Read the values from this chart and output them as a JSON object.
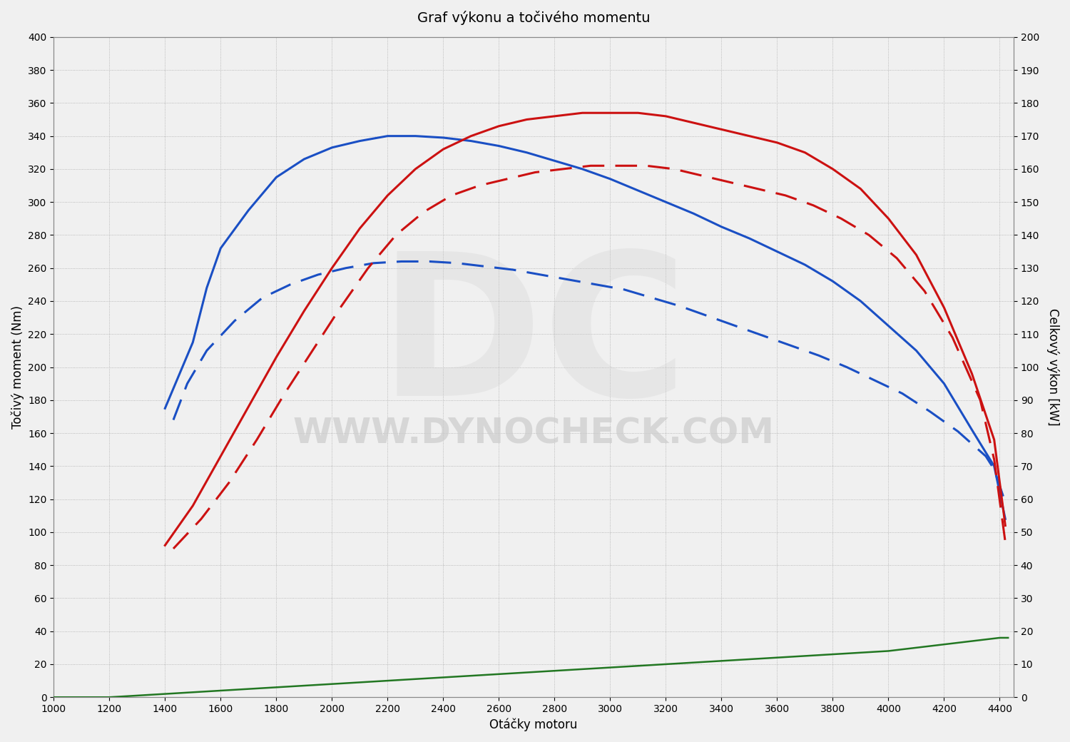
{
  "title": "Graf výkonu a točivého momentu",
  "xlabel": "Otáčky motoru",
  "ylabel_left": "Točivý moment (Nm)",
  "ylabel_right": "Celkový výkon [kW]",
  "xlim": [
    1000,
    4450
  ],
  "ylim_left": [
    0,
    400
  ],
  "ylim_right": [
    0,
    200
  ],
  "yticks_left": [
    0,
    20,
    40,
    60,
    80,
    100,
    120,
    140,
    160,
    180,
    200,
    220,
    240,
    260,
    280,
    300,
    320,
    340,
    360,
    380,
    400
  ],
  "yticks_right": [
    0,
    10,
    20,
    30,
    40,
    50,
    60,
    70,
    80,
    90,
    100,
    110,
    120,
    130,
    140,
    150,
    160,
    170,
    180,
    190,
    200
  ],
  "xticks": [
    1000,
    1200,
    1400,
    1600,
    1800,
    2000,
    2200,
    2400,
    2600,
    2800,
    3000,
    3200,
    3400,
    3600,
    3800,
    4000,
    4200,
    4400
  ],
  "blue_solid_torque": {
    "x": [
      1400,
      1500,
      1550,
      1600,
      1700,
      1800,
      1900,
      2000,
      2100,
      2200,
      2300,
      2400,
      2500,
      2600,
      2700,
      2800,
      2900,
      3000,
      3100,
      3200,
      3300,
      3400,
      3500,
      3600,
      3700,
      3800,
      3900,
      4000,
      4100,
      4200,
      4300,
      4380,
      4420
    ],
    "y": [
      175,
      215,
      248,
      272,
      295,
      315,
      326,
      333,
      337,
      340,
      340,
      339,
      337,
      334,
      330,
      325,
      320,
      314,
      307,
      300,
      293,
      285,
      278,
      270,
      262,
      252,
      240,
      225,
      210,
      190,
      162,
      140,
      108
    ]
  },
  "blue_dashed_torque": {
    "x": [
      1430,
      1480,
      1550,
      1650,
      1750,
      1850,
      1950,
      2050,
      2150,
      2250,
      2350,
      2450,
      2550,
      2650,
      2750,
      2850,
      2950,
      3050,
      3150,
      3250,
      3350,
      3450,
      3550,
      3650,
      3750,
      3850,
      3950,
      4050,
      4150,
      4250,
      4350,
      4380,
      4420
    ],
    "y": [
      168,
      190,
      210,
      228,
      242,
      250,
      256,
      260,
      263,
      264,
      264,
      263,
      261,
      259,
      256,
      253,
      250,
      247,
      242,
      237,
      231,
      225,
      219,
      213,
      207,
      200,
      192,
      184,
      173,
      161,
      146,
      138,
      118
    ]
  },
  "red_solid_power": {
    "x": [
      1400,
      1500,
      1600,
      1700,
      1800,
      1900,
      2000,
      2100,
      2200,
      2300,
      2400,
      2500,
      2600,
      2700,
      2800,
      2900,
      3000,
      3100,
      3200,
      3300,
      3400,
      3500,
      3600,
      3700,
      3800,
      3900,
      4000,
      4100,
      4200,
      4300,
      4380,
      4420
    ],
    "y": [
      46,
      58,
      73,
      88,
      103,
      117,
      130,
      142,
      152,
      160,
      166,
      170,
      173,
      175,
      176,
      177,
      177,
      177,
      176,
      174,
      172,
      170,
      168,
      165,
      160,
      154,
      145,
      134,
      118,
      98,
      78,
      52
    ]
  },
  "red_dashed_power": {
    "x": [
      1430,
      1530,
      1630,
      1730,
      1830,
      1930,
      2030,
      2130,
      2230,
      2330,
      2430,
      2530,
      2630,
      2730,
      2830,
      2930,
      3030,
      3130,
      3230,
      3330,
      3430,
      3530,
      3630,
      3730,
      3830,
      3930,
      4030,
      4130,
      4230,
      4330,
      4380,
      4420
    ],
    "y": [
      45,
      54,
      65,
      78,
      92,
      105,
      118,
      130,
      140,
      147,
      152,
      155,
      157,
      159,
      160,
      161,
      161,
      161,
      160,
      158,
      156,
      154,
      152,
      149,
      145,
      140,
      133,
      123,
      109,
      90,
      72,
      47
    ]
  },
  "green_loss": {
    "x": [
      1000,
      1200,
      1400,
      1600,
      1800,
      2000,
      2200,
      2400,
      2600,
      2800,
      3000,
      3200,
      3400,
      3600,
      3800,
      4000,
      4200,
      4400,
      4430
    ],
    "y": [
      0,
      0,
      1,
      2,
      3,
      4,
      5,
      6,
      7,
      8,
      9,
      10,
      11,
      12,
      13,
      14,
      16,
      18,
      18
    ]
  },
  "blue_color": "#1a4fc4",
  "red_color": "#cc1111",
  "green_color": "#227722",
  "line_width": 2.2,
  "watermark_text": "WWW.DYNOCHECK.COM",
  "background_color": "#f0f0f0"
}
